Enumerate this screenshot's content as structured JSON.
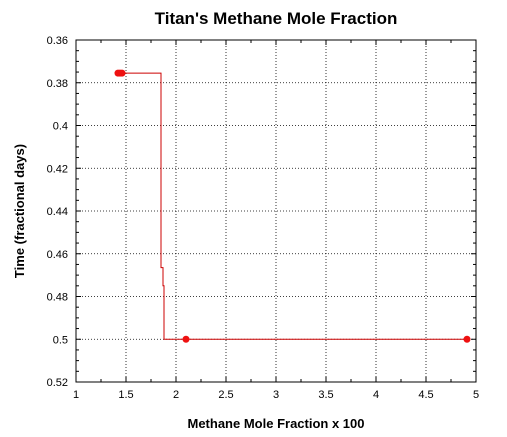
{
  "chart_data": {
    "type": "line",
    "title": "Titan's Methane Mole Fraction",
    "xlabel": "Methane Mole Fraction x 100",
    "ylabel": "Time (fractional days)",
    "xlim": [
      1,
      5
    ],
    "ylim": [
      0.36,
      0.52
    ],
    "y_inverted": true,
    "grid": true,
    "x_ticks": [
      1,
      1.5,
      2,
      2.5,
      3,
      3.5,
      4,
      4.5,
      5
    ],
    "x_tick_labels": [
      "1",
      "1.5",
      "2",
      "2.5",
      "3",
      "3.5",
      "4",
      "4.5",
      "5"
    ],
    "y_ticks": [
      0.36,
      0.38,
      0.4,
      0.42,
      0.44,
      0.46,
      0.48,
      0.5,
      0.52
    ],
    "y_tick_labels": [
      "0.36",
      "0.38",
      "0.4",
      "0.42",
      "0.44",
      "0.46",
      "0.48",
      "0.5",
      "0.52"
    ],
    "series": [
      {
        "color": "#cc0000",
        "line": {
          "x": [
            1.42,
            1.85,
            1.85,
            1.87,
            1.87,
            1.88,
            1.88,
            4.91
          ],
          "y": [
            0.3755,
            0.3755,
            0.4665,
            0.4665,
            0.475,
            0.475,
            0.5,
            0.5
          ]
        },
        "markers": {
          "x": [
            1.42,
            1.44,
            1.46,
            2.1,
            4.91
          ],
          "y": [
            0.3755,
            0.3755,
            0.3755,
            0.5,
            0.5
          ]
        }
      }
    ]
  }
}
